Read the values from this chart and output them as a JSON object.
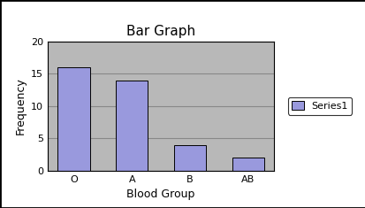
{
  "title": "Bar Graph",
  "xlabel": "Blood Group",
  "ylabel": "Frequency",
  "categories": [
    "O",
    "A",
    "B",
    "AB"
  ],
  "values": [
    16,
    14,
    4,
    2
  ],
  "bar_color": "#9999dd",
  "bar_edgecolor": "#000000",
  "ylim": [
    0,
    20
  ],
  "yticks": [
    0,
    5,
    10,
    15,
    20
  ],
  "legend_label": "Series1",
  "legend_patch_color": "#9999dd",
  "plot_bg_color": "#b8b8b8",
  "fig_bg_color": "#ffffff",
  "title_fontsize": 11,
  "axis_label_fontsize": 9,
  "tick_fontsize": 8,
  "grid_color": "#888888",
  "outer_border_color": "#000000"
}
